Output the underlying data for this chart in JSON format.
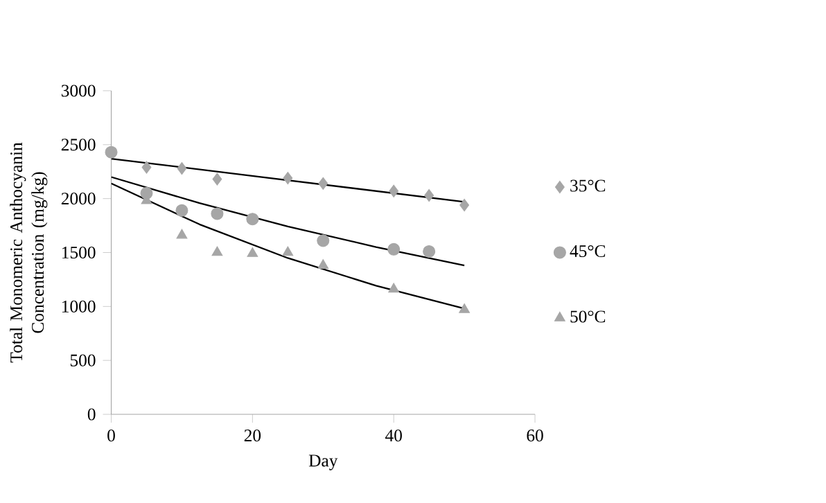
{
  "chart_data": {
    "type": "scatter",
    "xlabel": "Day",
    "ylabel": "Total Monomeric Anthocyanin Concentration (mg/kg)",
    "xlim": [
      0,
      60
    ],
    "ylim": [
      0,
      3000
    ],
    "xticks": [
      0,
      20,
      40,
      60
    ],
    "yticks": [
      0,
      500,
      1000,
      1500,
      2000,
      2500,
      3000
    ],
    "grid": false,
    "legend": "right",
    "series": [
      {
        "name": "35°C",
        "color": "#a6a6a6",
        "marker": "diamond",
        "x": [
          5,
          10,
          15,
          25,
          30,
          40,
          45,
          50
        ],
        "values": [
          2290,
          2280,
          2180,
          2190,
          2140,
          2070,
          2030,
          1940
        ]
      },
      {
        "name": "45°C",
        "color": "#a6a6a6",
        "marker": "circle",
        "x": [
          0,
          5,
          10,
          15,
          20,
          30,
          40,
          45
        ],
        "values": [
          2430,
          2050,
          1890,
          1860,
          1810,
          1610,
          1530,
          1510
        ]
      },
      {
        "name": "50°C",
        "color": "#a6a6a6",
        "marker": "triangle",
        "x": [
          5,
          10,
          15,
          20,
          25,
          30,
          40,
          50
        ],
        "values": [
          1980,
          1660,
          1500,
          1490,
          1500,
          1380,
          1160,
          970
        ]
      },
      {
        "type": "line",
        "color": "#000000",
        "marker": "none",
        "x": [
          0,
          25,
          50
        ],
        "values": [
          2370,
          2170,
          1970
        ]
      },
      {
        "type": "line",
        "color": "#000000",
        "marker": "none",
        "x": [
          0,
          12.5,
          25,
          37.5,
          50
        ],
        "values": [
          2200,
          1958,
          1742,
          1551,
          1380
        ]
      },
      {
        "type": "line",
        "color": "#000000",
        "marker": "none",
        "x": [
          0,
          12.5,
          25,
          37.5,
          50
        ],
        "values": [
          2140,
          1761,
          1449,
          1192,
          980
        ]
      }
    ]
  }
}
